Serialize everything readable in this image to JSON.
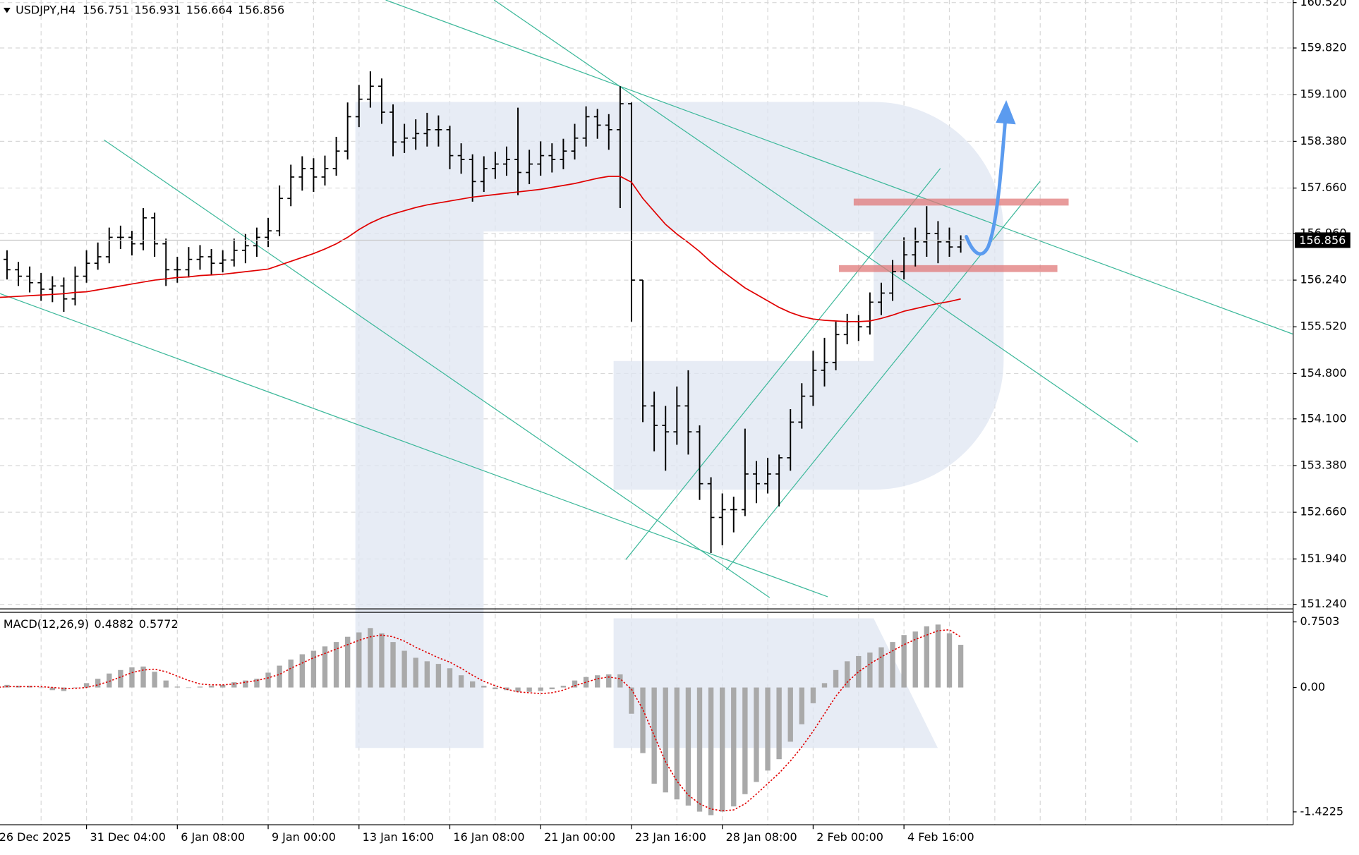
{
  "chart_data": [
    {
      "type": "ohlc",
      "title": "USDJPY,H4",
      "color": "#000000",
      "grid": true,
      "categories": [
        "26 Dec 2025",
        null,
        null,
        null,
        null,
        null,
        null,
        null,
        "31 Dec 04:00",
        null,
        null,
        null,
        null,
        null,
        null,
        null,
        "6 Jan 08:00",
        null,
        null,
        null,
        null,
        null,
        null,
        null,
        "9 Jan 00:00",
        null,
        null,
        null,
        null,
        null,
        null,
        null,
        "13 Jan 16:00",
        null,
        null,
        null,
        null,
        null,
        null,
        null,
        "16 Jan 08:00",
        null,
        null,
        null,
        null,
        null,
        null,
        null,
        "21 Jan 00:00",
        null,
        null,
        null,
        null,
        null,
        null,
        null,
        "23 Jan 16:00",
        null,
        null,
        null,
        null,
        null,
        null,
        null,
        "28 Jan 08:00",
        null,
        null,
        null,
        null,
        null,
        null,
        null,
        "2 Feb 00:00",
        null,
        null,
        null,
        null,
        null,
        null,
        null,
        "4 Feb 16:00",
        null,
        null,
        null,
        null,
        null
      ],
      "open": [
        156.6,
        156.56,
        156.4,
        156.3,
        156.2,
        156.1,
        156.15,
        155.95,
        156.3,
        156.5,
        156.6,
        156.9,
        156.9,
        156.8,
        157.2,
        156.8,
        156.4,
        156.4,
        156.56,
        156.6,
        156.5,
        156.55,
        156.7,
        156.77,
        156.9,
        157.0,
        157.5,
        157.83,
        157.96,
        157.83,
        157.96,
        158.23,
        158.76,
        159.03,
        159.23,
        158.83,
        158.37,
        158.43,
        158.5,
        158.56,
        158.56,
        158.16,
        158.1,
        157.76,
        157.96,
        158.03,
        158.1,
        157.9,
        158.03,
        158.16,
        158.1,
        158.23,
        158.43,
        158.76,
        158.63,
        158.56,
        158.96,
        156.24,
        154.3,
        154.0,
        153.9,
        154.3,
        153.9,
        153.1,
        152.58,
        152.7,
        152.7,
        153.25,
        153.1,
        153.25,
        153.5,
        154.05,
        154.45,
        154.85,
        154.97,
        155.4,
        155.6,
        155.52,
        155.9,
        156.04,
        156.37,
        156.63,
        156.83,
        156.96,
        156.83,
        156.751
      ],
      "high": [
        156.78,
        156.7,
        156.52,
        156.45,
        156.35,
        156.3,
        156.28,
        156.45,
        156.7,
        156.82,
        157.05,
        157.08,
        157.0,
        157.35,
        157.28,
        156.88,
        156.6,
        156.75,
        156.78,
        156.72,
        156.7,
        156.88,
        156.95,
        157.05,
        157.2,
        157.7,
        158.02,
        158.15,
        158.12,
        158.16,
        158.45,
        158.98,
        159.25,
        159.46,
        159.35,
        158.95,
        158.65,
        158.72,
        158.82,
        158.78,
        158.62,
        158.35,
        158.18,
        158.15,
        158.22,
        158.3,
        158.9,
        158.25,
        158.38,
        158.35,
        158.42,
        158.65,
        158.92,
        158.88,
        158.8,
        159.23,
        158.98,
        156.24,
        154.52,
        154.3,
        154.6,
        154.85,
        154.0,
        153.2,
        152.95,
        152.9,
        153.95,
        153.45,
        153.5,
        153.55,
        154.25,
        154.65,
        155.15,
        155.35,
        155.6,
        155.72,
        155.7,
        156.05,
        156.2,
        156.55,
        156.9,
        157.05,
        157.38,
        157.15,
        157.05,
        156.931
      ],
      "low": [
        156.42,
        156.25,
        156.15,
        156.05,
        155.92,
        155.9,
        155.75,
        155.85,
        156.2,
        156.4,
        156.5,
        156.72,
        156.62,
        156.7,
        156.6,
        156.15,
        156.2,
        156.28,
        156.4,
        156.32,
        156.36,
        156.45,
        156.5,
        156.6,
        156.75,
        156.92,
        157.38,
        157.62,
        157.6,
        157.7,
        157.85,
        158.1,
        158.6,
        158.9,
        158.65,
        158.15,
        158.2,
        158.25,
        158.3,
        158.3,
        157.95,
        157.88,
        157.45,
        157.6,
        157.8,
        157.85,
        157.55,
        157.72,
        157.85,
        157.9,
        157.95,
        158.1,
        158.3,
        158.42,
        158.25,
        157.35,
        155.6,
        154.05,
        153.6,
        153.3,
        153.7,
        153.55,
        152.85,
        152.03,
        152.15,
        152.35,
        152.6,
        152.8,
        152.95,
        152.75,
        153.3,
        153.95,
        154.3,
        154.6,
        154.85,
        155.25,
        155.3,
        155.4,
        155.7,
        155.92,
        156.25,
        156.45,
        156.6,
        156.5,
        156.6,
        156.664
      ],
      "close": [
        156.56,
        156.4,
        156.3,
        156.2,
        156.1,
        156.15,
        155.95,
        156.3,
        156.5,
        156.6,
        156.9,
        156.9,
        156.8,
        157.2,
        156.8,
        156.4,
        156.4,
        156.56,
        156.6,
        156.5,
        156.55,
        156.7,
        156.77,
        156.9,
        157.0,
        157.5,
        157.83,
        157.96,
        157.83,
        157.96,
        158.23,
        158.76,
        159.03,
        159.23,
        158.83,
        158.37,
        158.43,
        158.5,
        158.56,
        158.56,
        158.16,
        158.1,
        157.76,
        157.96,
        158.03,
        158.1,
        157.9,
        158.03,
        158.16,
        158.1,
        158.23,
        158.43,
        158.76,
        158.63,
        158.56,
        158.96,
        156.24,
        154.3,
        154.0,
        153.9,
        154.3,
        153.9,
        153.1,
        152.58,
        152.7,
        152.7,
        153.25,
        153.1,
        153.25,
        153.5,
        154.05,
        154.45,
        154.85,
        154.97,
        155.4,
        155.6,
        155.52,
        155.9,
        156.04,
        156.37,
        156.63,
        156.83,
        156.96,
        156.83,
        156.751,
        156.856
      ],
      "moving_average": {
        "color": "#e00000",
        "values": [
          155.97,
          155.98,
          155.99,
          156.0,
          156.01,
          156.02,
          156.03,
          156.05,
          156.06,
          156.09,
          156.12,
          156.15,
          156.18,
          156.21,
          156.24,
          156.26,
          156.28,
          156.29,
          156.31,
          156.32,
          156.33,
          156.35,
          156.37,
          156.39,
          156.41,
          156.47,
          156.53,
          156.59,
          156.65,
          156.72,
          156.8,
          156.9,
          157.02,
          157.12,
          157.2,
          157.26,
          157.31,
          157.36,
          157.4,
          157.43,
          157.46,
          157.49,
          157.52,
          157.54,
          157.56,
          157.58,
          157.6,
          157.62,
          157.64,
          157.67,
          157.7,
          157.73,
          157.77,
          157.81,
          157.84,
          157.84,
          157.75,
          157.5,
          157.3,
          157.1,
          156.95,
          156.82,
          156.68,
          156.52,
          156.38,
          156.25,
          156.12,
          156.02,
          155.92,
          155.82,
          155.74,
          155.68,
          155.64,
          155.62,
          155.61,
          155.6,
          155.6,
          155.61,
          155.65,
          155.7,
          155.76,
          155.8,
          155.84,
          155.88,
          155.91,
          155.95
        ]
      },
      "ylim": [
        151.17,
        160.56
      ],
      "yticks": [
        {
          "value": 151.24,
          "label": "151.240"
        },
        {
          "value": 151.94,
          "label": "151.940"
        },
        {
          "value": 152.66,
          "label": "152.660"
        },
        {
          "value": 153.38,
          "label": "153.380"
        },
        {
          "value": 154.1,
          "label": "154.100"
        },
        {
          "value": 154.8,
          "label": "154.800"
        },
        {
          "value": 155.52,
          "label": "155.520"
        },
        {
          "value": 156.24,
          "label": "156.240"
        },
        {
          "value": 156.96,
          "label": "156.960"
        },
        {
          "value": 157.66,
          "label": "157.660"
        },
        {
          "value": 158.38,
          "label": "158.380"
        },
        {
          "value": 159.1,
          "label": "159.100"
        },
        {
          "value": 159.82,
          "label": "159.820"
        },
        {
          "value": 160.52,
          "label": "160.520"
        }
      ]
    },
    {
      "type": "bar",
      "title": "MACD(12,26,9)",
      "color": "#a9a9a9",
      "values": [
        0.03,
        0.03,
        0.02,
        0.02,
        0.0,
        -0.03,
        -0.04,
        0.0,
        0.05,
        0.1,
        0.16,
        0.2,
        0.23,
        0.24,
        0.18,
        0.08,
        0.01,
        0.0,
        0.01,
        0.02,
        0.03,
        0.06,
        0.08,
        0.1,
        0.17,
        0.25,
        0.32,
        0.38,
        0.42,
        0.47,
        0.52,
        0.58,
        0.63,
        0.68,
        0.62,
        0.52,
        0.42,
        0.34,
        0.3,
        0.27,
        0.22,
        0.14,
        0.07,
        0.02,
        -0.02,
        -0.03,
        -0.05,
        -0.05,
        -0.04,
        -0.02,
        0.02,
        0.08,
        0.12,
        0.14,
        0.15,
        0.15,
        -0.3,
        -0.75,
        -1.1,
        -1.2,
        -1.28,
        -1.35,
        -1.42,
        -1.46,
        -1.42,
        -1.36,
        -1.22,
        -1.08,
        -0.95,
        -0.82,
        -0.62,
        -0.42,
        -0.18,
        0.05,
        0.2,
        0.3,
        0.36,
        0.4,
        0.46,
        0.52,
        0.6,
        0.64,
        0.7,
        0.72,
        0.62,
        0.4882
      ],
      "signal": {
        "color": "#e00000",
        "values": [
          0.0,
          0.01,
          0.01,
          0.01,
          0.01,
          0.0,
          -0.01,
          -0.01,
          0.0,
          0.03,
          0.07,
          0.12,
          0.17,
          0.2,
          0.21,
          0.18,
          0.13,
          0.08,
          0.04,
          0.03,
          0.03,
          0.04,
          0.06,
          0.08,
          0.11,
          0.15,
          0.22,
          0.28,
          0.34,
          0.39,
          0.44,
          0.49,
          0.54,
          0.58,
          0.6,
          0.58,
          0.53,
          0.46,
          0.4,
          0.34,
          0.29,
          0.22,
          0.14,
          0.07,
          0.02,
          -0.02,
          -0.05,
          -0.06,
          -0.07,
          -0.06,
          -0.03,
          0.02,
          0.06,
          0.1,
          0.12,
          0.1,
          -0.02,
          -0.25,
          -0.55,
          -0.85,
          -1.07,
          -1.23,
          -1.33,
          -1.39,
          -1.41,
          -1.4,
          -1.33,
          -1.22,
          -1.1,
          -0.98,
          -0.84,
          -0.68,
          -0.5,
          -0.3,
          -0.1,
          0.06,
          0.18,
          0.27,
          0.35,
          0.42,
          0.49,
          0.55,
          0.6,
          0.65,
          0.66,
          0.5772
        ]
      },
      "ylim": [
        -1.57,
        0.85
      ],
      "yticks": [
        0.7503,
        {
          "value": 0,
          "label": "0.00"
        },
        -1.4225
      ]
    }
  ]
}
